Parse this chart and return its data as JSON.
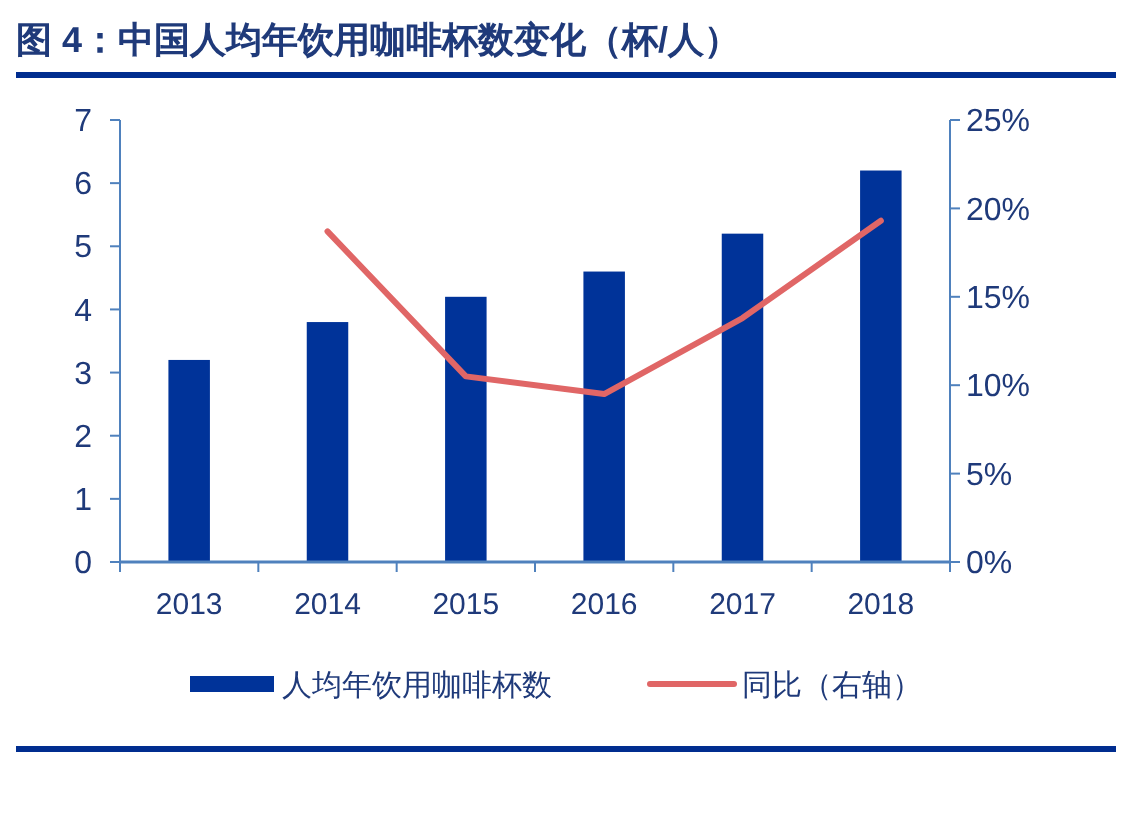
{
  "chart_data": {
    "type": "bar",
    "title": "图 4：中国人均年饮用咖啡杯数变化（杯/人）",
    "categories": [
      "2013",
      "2014",
      "2015",
      "2016",
      "2017",
      "2018"
    ],
    "series": [
      {
        "name": "人均年饮用咖啡杯数",
        "color": "#003399",
        "values": [
          3.2,
          3.8,
          4.2,
          4.6,
          5.2,
          6.2
        ]
      },
      {
        "name": "同比（右轴）",
        "type": "line",
        "axis": "y2",
        "color": "#e06666",
        "values": [
          null,
          18.7,
          10.5,
          9.5,
          13.8,
          19.3
        ]
      }
    ],
    "ylim": [
      0,
      7
    ],
    "yticks": [
      0,
      1,
      2,
      3,
      4,
      5,
      6,
      7
    ],
    "y2lim": [
      0,
      25
    ],
    "y2ticks": [
      {
        "value": 0,
        "label": "0%"
      },
      {
        "value": 5,
        "label": "5%"
      },
      {
        "value": 10,
        "label": "10%"
      },
      {
        "value": 15,
        "label": "15%"
      },
      {
        "value": 20,
        "label": "20%"
      },
      {
        "value": 25,
        "label": "25%"
      }
    ],
    "legend": "bottom",
    "grid": false
  }
}
